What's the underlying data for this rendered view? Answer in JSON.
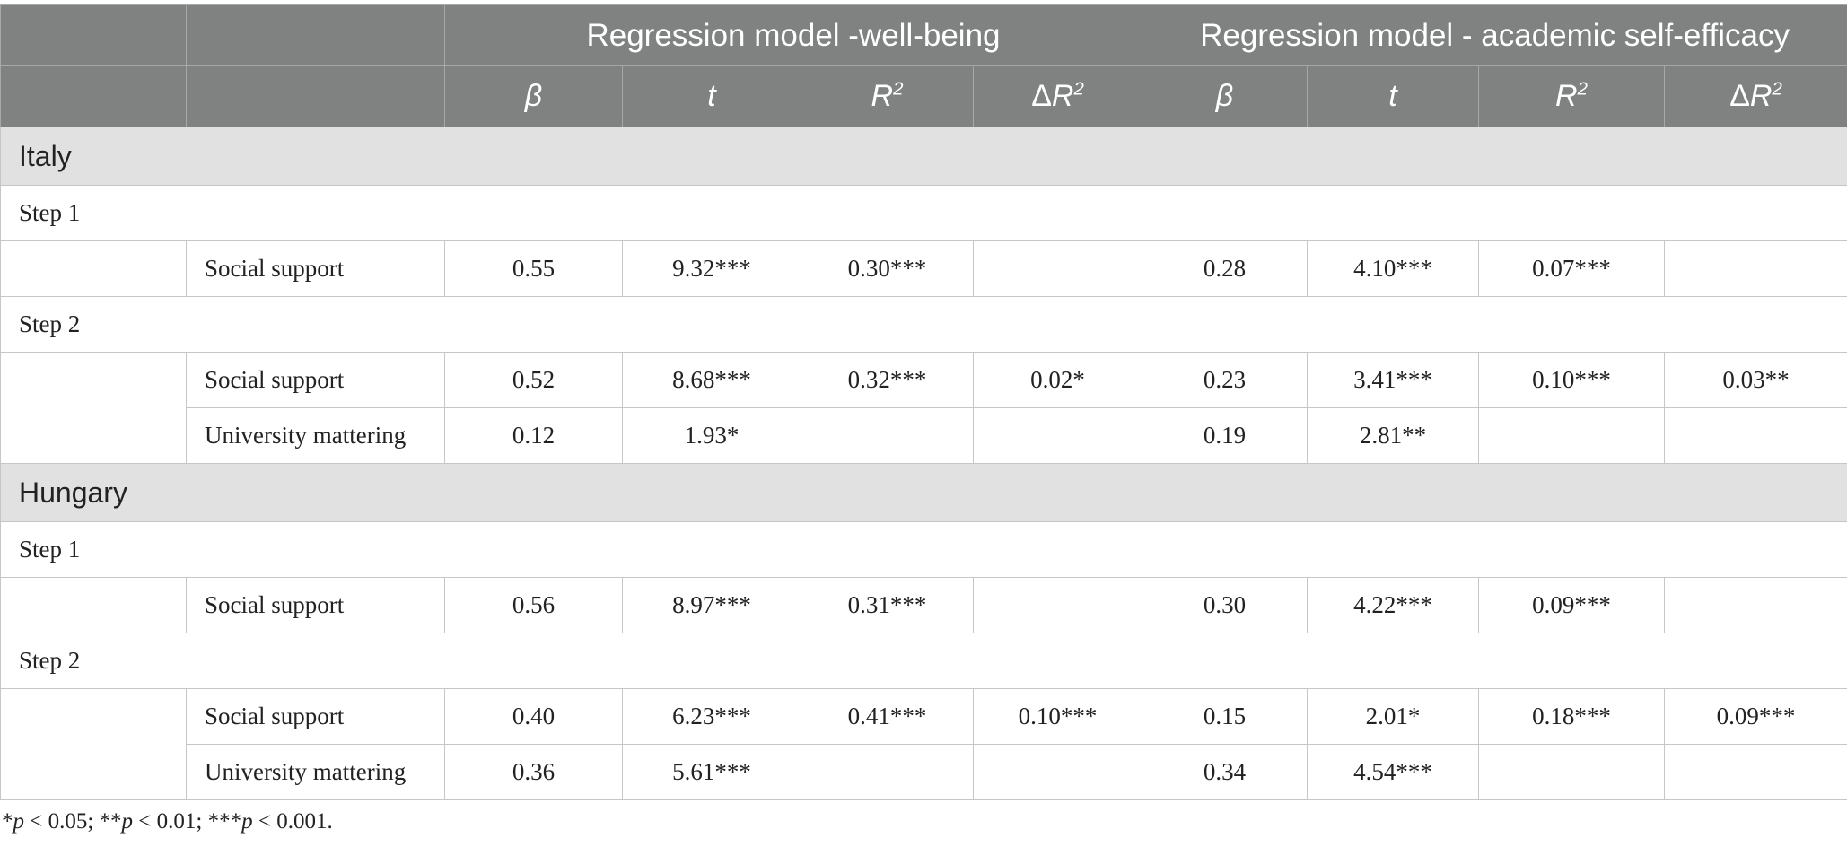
{
  "header": {
    "group1": "Regression model -well-being",
    "group2": "Regression model - academic self-efficacy",
    "beta": "β",
    "t": "t",
    "r_base": "R",
    "r_sup": "2",
    "delta": "Δ"
  },
  "sections": [
    {
      "country": "Italy",
      "steps": [
        {
          "label": "Step 1",
          "rows": [
            {
              "var": "Social support",
              "wb": [
                "0.55",
                "9.32***",
                "0.30***",
                ""
              ],
              "ase": [
                "0.28",
                "4.10***",
                "0.07***",
                ""
              ]
            }
          ]
        },
        {
          "label": "Step 2",
          "rows": [
            {
              "var": "Social support",
              "wb": [
                "0.52",
                "8.68***",
                "0.32***",
                "0.02*"
              ],
              "ase": [
                "0.23",
                "3.41***",
                "0.10***",
                "0.03**"
              ]
            },
            {
              "var": "University mattering",
              "wb": [
                "0.12",
                "1.93*",
                "",
                ""
              ],
              "ase": [
                "0.19",
                "2.81**",
                "",
                ""
              ]
            }
          ]
        }
      ]
    },
    {
      "country": "Hungary",
      "steps": [
        {
          "label": "Step 1",
          "rows": [
            {
              "var": "Social support",
              "wb": [
                "0.56",
                "8.97***",
                "0.31***",
                ""
              ],
              "ase": [
                "0.30",
                "4.22***",
                "0.09***",
                ""
              ]
            }
          ]
        },
        {
          "label": "Step 2",
          "rows": [
            {
              "var": "Social support",
              "wb": [
                "0.40",
                "6.23***",
                "0.41***",
                "0.10***"
              ],
              "ase": [
                "0.15",
                "2.01*",
                "0.18***",
                "0.09***"
              ]
            },
            {
              "var": "University mattering",
              "wb": [
                "0.36",
                "5.61***",
                "",
                ""
              ],
              "ase": [
                "0.34",
                "4.54***",
                "",
                ""
              ]
            }
          ]
        }
      ]
    }
  ],
  "footnote": {
    "s1": "*",
    "p1": "p",
    "t1": " < 0.05; **",
    "p2": "p",
    "t2": " < 0.01; ***",
    "p3": "p",
    "t3": " < 0.001."
  }
}
